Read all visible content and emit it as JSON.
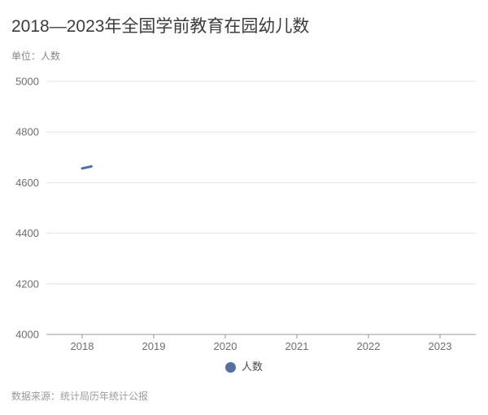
{
  "page": {
    "background": "#ffffff"
  },
  "header": {
    "title": "2018—2023年全国学前教育在园幼儿数",
    "unit_label": "单位：人数"
  },
  "legend": {
    "items": [
      {
        "label": "人数",
        "marker_color": "#55719f",
        "marker_shape": "circle"
      }
    ],
    "position": "bottom-center"
  },
  "footer": {
    "source_text": "数据来源：统计局历年统计公报"
  },
  "chart_data": {
    "type": "line",
    "title": "2018—2023年全国学前教育在园幼儿数",
    "unit": "人数",
    "xlabel": "",
    "ylabel": "",
    "categories": [
      "2018",
      "2019",
      "2020",
      "2021",
      "2022",
      "2023"
    ],
    "y_ticks": [
      4000,
      4200,
      4400,
      4600,
      4800,
      5000
    ],
    "ylim": [
      4000,
      5000
    ],
    "grid": true,
    "legend_position": "bottom",
    "series": [
      {
        "name": "人数",
        "color": "#55719f",
        "line_width": 3,
        "visible_segment": {
          "start_category": "2018",
          "start_value": 4656,
          "end_offset_categories": 0.13,
          "end_value": 4664
        },
        "note": "Only a short rising segment at 2018 (≈4656, heading toward 2019) is drawn in the screenshot; the rest of the line is not rendered (animation frame)."
      }
    ],
    "colors": {
      "grid_line": "#e2e2e2",
      "axis_line": "#999999",
      "tick_label": "#6e6e6e"
    }
  }
}
